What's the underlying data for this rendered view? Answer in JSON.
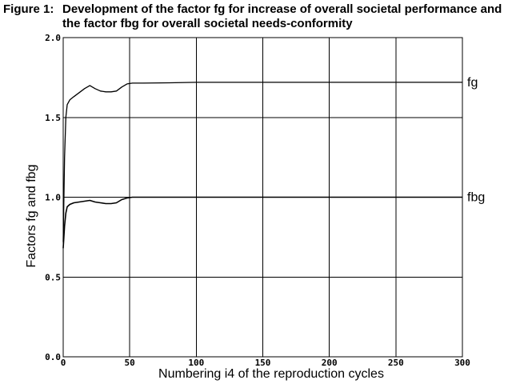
{
  "figure": {
    "label": "Figure 1:",
    "title": "Development of the factor fg for increase of overall societal performance and the factor fbg for overall societal needs-conformity"
  },
  "chart_data": {
    "type": "line",
    "title": "Development of the factor fg for increase of overall societal performance and the factor fbg for overall societal needs-conformity",
    "xlabel": "Numbering i4 of the reproduction cycles",
    "ylabel": "Factors fg and fbg",
    "xlim": [
      0,
      300
    ],
    "ylim": [
      0,
      2
    ],
    "xticks": [
      0,
      50,
      100,
      150,
      200,
      250,
      300
    ],
    "xtick_labels": [
      "0",
      "50",
      "100",
      "150",
      "200",
      "250",
      "300"
    ],
    "yticks": [
      0,
      0.5,
      1,
      1.5,
      2
    ],
    "ytick_labels": [
      "0.0",
      "0.5",
      "1.0",
      "1.5",
      "2.0"
    ],
    "grid": true,
    "series": [
      {
        "name": "fg",
        "label": "fg",
        "color": "#000000",
        "x": [
          0,
          1,
          2,
          3,
          5,
          8,
          12,
          16,
          20,
          24,
          28,
          32,
          36,
          40,
          44,
          48,
          52,
          60,
          80,
          100,
          120,
          150,
          200,
          250,
          300
        ],
        "values": [
          0.72,
          1.25,
          1.5,
          1.58,
          1.61,
          1.63,
          1.655,
          1.68,
          1.7,
          1.68,
          1.665,
          1.66,
          1.66,
          1.665,
          1.69,
          1.71,
          1.715,
          1.715,
          1.717,
          1.72,
          1.72,
          1.72,
          1.72,
          1.72,
          1.72
        ]
      },
      {
        "name": "fbg",
        "label": "fbg",
        "color": "#000000",
        "x": [
          0,
          1,
          2,
          3,
          5,
          8,
          12,
          16,
          20,
          24,
          28,
          32,
          36,
          40,
          44,
          48,
          52,
          60,
          80,
          100,
          150,
          200,
          250,
          300
        ],
        "values": [
          0.68,
          0.82,
          0.9,
          0.94,
          0.955,
          0.965,
          0.97,
          0.975,
          0.98,
          0.97,
          0.965,
          0.96,
          0.96,
          0.965,
          0.985,
          0.995,
          1.0,
          1.0,
          1.0,
          1.0,
          1.0,
          1.0,
          1.0,
          1.0
        ]
      }
    ]
  }
}
